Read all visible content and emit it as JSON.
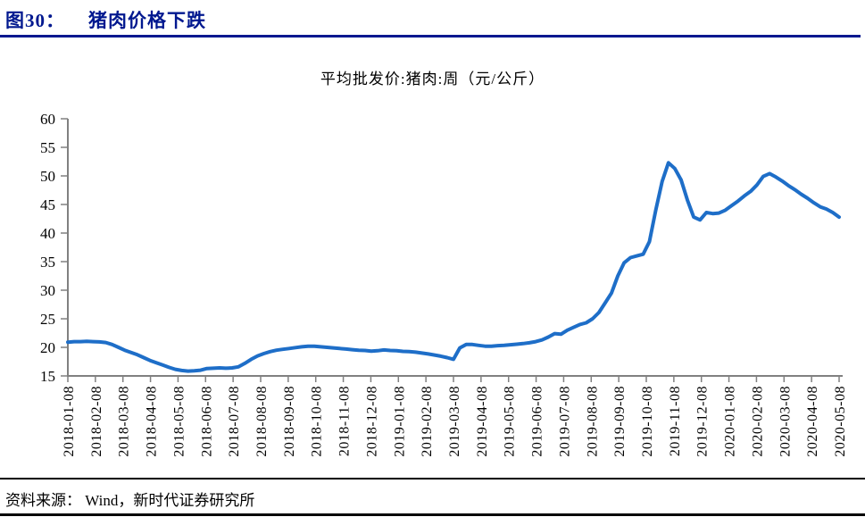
{
  "figure": {
    "label": "图30：",
    "title": "猪肉价格下跌"
  },
  "source": {
    "text": "资料来源： Wind，新时代证券研究所"
  },
  "colors": {
    "heading": "#00188F",
    "heading_rule": "#00188F",
    "line": "#1E6EC8",
    "axis": "#808080",
    "tick_text": "#000000"
  },
  "chart_data": {
    "type": "line",
    "title": "平均批发价:猪肉:周（元/公斤）",
    "series_name": "平均批发价:猪肉:周",
    "unit": "元/公斤",
    "frequency": "weekly",
    "grid": false,
    "legend": "none",
    "ylim": [
      15,
      60
    ],
    "y_ticks": [
      15,
      20,
      25,
      30,
      35,
      40,
      45,
      50,
      55,
      60
    ],
    "x_tick_labels": [
      "2018-01-08",
      "2018-02-08",
      "2018-03-08",
      "2018-04-08",
      "2018-05-08",
      "2018-06-08",
      "2018-07-08",
      "2018-08-08",
      "2018-09-08",
      "2018-10-08",
      "2018-11-08",
      "2018-12-08",
      "2019-01-08",
      "2019-02-08",
      "2019-03-08",
      "2019-04-08",
      "2019-05-08",
      "2019-06-08",
      "2019-07-08",
      "2019-08-08",
      "2019-09-08",
      "2019-10-08",
      "2019-11-08",
      "2019-12-08",
      "2020-01-08",
      "2020-02-08",
      "2020-03-08",
      "2020-04-08",
      "2020-05-08"
    ],
    "x_start": "2018-01-08",
    "x_end": "2020-05-08",
    "values": [
      20.9,
      21.0,
      21.0,
      21.05,
      21.0,
      20.95,
      20.85,
      20.5,
      20.0,
      19.5,
      19.1,
      18.7,
      18.2,
      17.7,
      17.3,
      16.9,
      16.5,
      16.15,
      15.95,
      15.85,
      15.9,
      16.0,
      16.3,
      16.35,
      16.4,
      16.35,
      16.4,
      16.6,
      17.2,
      17.9,
      18.5,
      18.9,
      19.25,
      19.5,
      19.65,
      19.8,
      19.95,
      20.1,
      20.2,
      20.2,
      20.1,
      20.0,
      19.9,
      19.8,
      19.7,
      19.6,
      19.5,
      19.45,
      19.35,
      19.4,
      19.55,
      19.45,
      19.4,
      19.3,
      19.25,
      19.15,
      19.0,
      18.85,
      18.65,
      18.45,
      18.2,
      17.9,
      19.9,
      20.5,
      20.5,
      20.35,
      20.2,
      20.2,
      20.3,
      20.35,
      20.45,
      20.55,
      20.65,
      20.8,
      21.0,
      21.3,
      21.8,
      22.4,
      22.3,
      23.0,
      23.5,
      24.0,
      24.3,
      25.0,
      26.1,
      27.8,
      29.5,
      32.5,
      34.8,
      35.7,
      36.0,
      36.3,
      38.5,
      44.0,
      49.0,
      52.3,
      51.3,
      49.3,
      45.8,
      42.8,
      42.3,
      43.6,
      43.4,
      43.5,
      44.0,
      44.8,
      45.6,
      46.5,
      47.3,
      48.4,
      49.9,
      50.4,
      49.8,
      49.1,
      48.3,
      47.6,
      46.8,
      46.1,
      45.3,
      44.6,
      44.2,
      43.6,
      42.8
    ]
  }
}
